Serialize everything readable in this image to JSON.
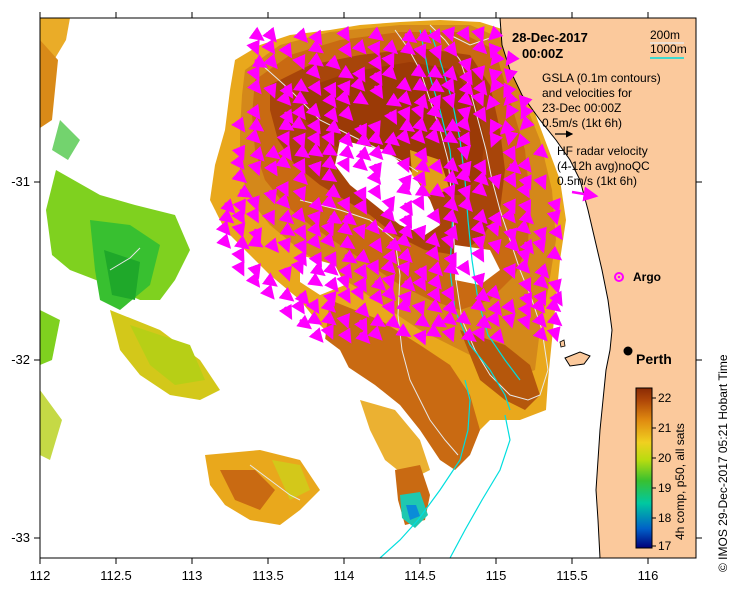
{
  "title": {
    "date": "28-Dec-2017",
    "time": "00:00Z"
  },
  "depth_legend": {
    "shallow": "200m",
    "deep": "1000m",
    "shallow_color": "#e8e8e8",
    "deep_color": "#00dede"
  },
  "gsla_legend": {
    "line1": "GSLA (0.1m contours)",
    "line2": "and velocities for",
    "line3": "23-Dec 00:00Z",
    "scale": "0.5m/s (1kt 6h)"
  },
  "radar_legend": {
    "line1": "HF radar velocity",
    "line2": "(4-12h avg)noQC",
    "scale": "0.5m/s (1kt 6h)"
  },
  "argo": {
    "label": "Argo"
  },
  "city": {
    "label": "Perth"
  },
  "colorbar": {
    "ticks": [
      "22",
      "21",
      "20",
      "19",
      "18",
      "17"
    ],
    "title": "4h comp, p50, all sats"
  },
  "credit": "© IMOS 29-Dec-2017 05:21 Hobart Time",
  "axes": {
    "x_ticks": [
      "112",
      "112.5",
      "113",
      "113.5",
      "114",
      "114.5",
      "115",
      "115.5",
      "116"
    ],
    "y_ticks": [
      "-31",
      "-32",
      "-33"
    ]
  },
  "colors": {
    "land": "#fbc99c",
    "arrow": "#ff00ff",
    "hot": "#9b3a06",
    "warm": "#c96a12",
    "mild": "#e9a81c",
    "cool": "#7fd11f",
    "cold": "#1fa82a"
  }
}
